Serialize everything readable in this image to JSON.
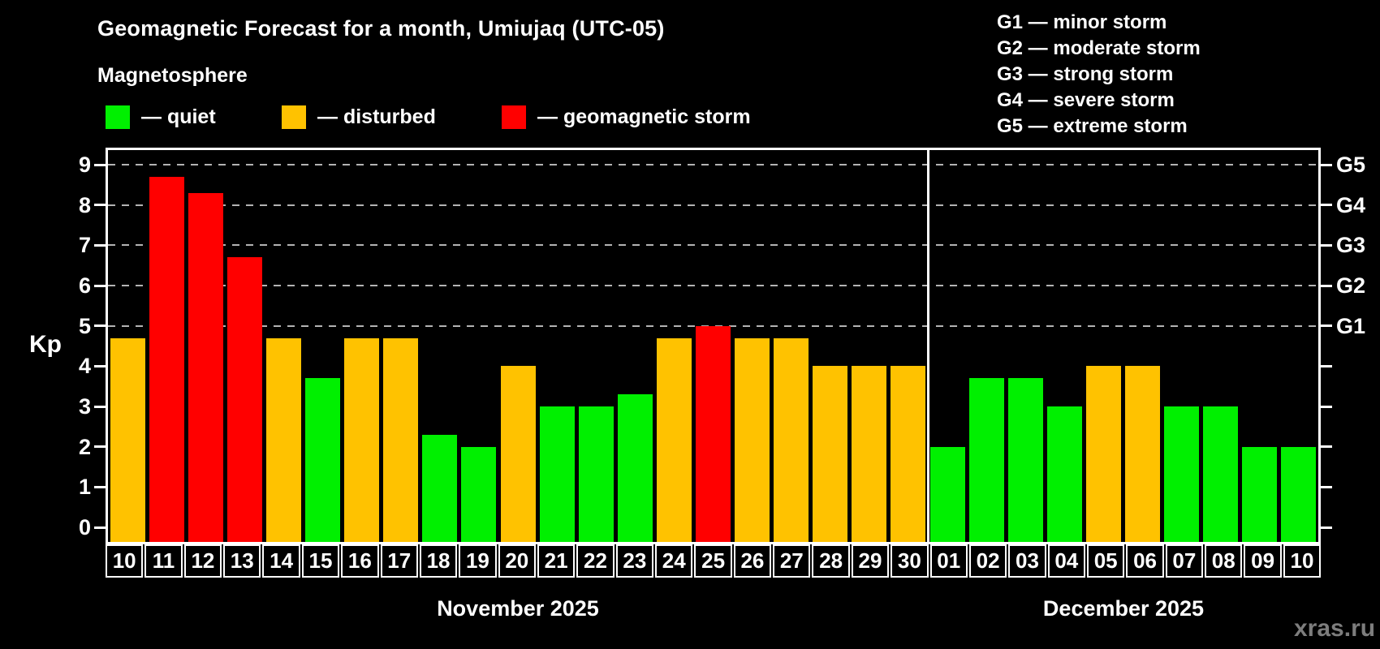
{
  "title": "Geomagnetic Forecast for a month, Umiujaq (UTC-05)",
  "subtitle": "Magnetosphere",
  "legend": {
    "quiet_label": "— quiet",
    "disturbed_label": "— disturbed",
    "storm_label": "— geomagnetic storm"
  },
  "g_legend": {
    "g1": "G1 — minor storm",
    "g2": "G2 — moderate storm",
    "g3": "G3 — strong storm",
    "g4": "G4 — severe storm",
    "g5": "G5 — extreme storm"
  },
  "months": [
    {
      "label": "November 2025"
    },
    {
      "label": "December 2025"
    }
  ],
  "watermark": "xras.ru",
  "colors": {
    "quiet": "#00f000",
    "disturbed": "#ffc200",
    "storm": "#ff0000",
    "axis": "#ffffff",
    "grid": "#b3b3b3",
    "watermark": "#7d7d7d"
  },
  "chart_data": {
    "type": "bar",
    "title": "Geomagnetic Forecast for a month, Umiujaq (UTC-05)",
    "xlabel": "",
    "ylabel": "Kp",
    "ylim": [
      0,
      9
    ],
    "grid": "dashed horizontal at Kp 5-9",
    "legend_position": "top-left",
    "y_ticks": [
      0,
      1,
      2,
      3,
      4,
      5,
      6,
      7,
      8,
      9
    ],
    "gridline_kp": [
      5,
      6,
      7,
      8,
      9
    ],
    "right_axis_labels": [
      {
        "kp": 5,
        "label": "G1"
      },
      {
        "kp": 6,
        "label": "G2"
      },
      {
        "kp": 7,
        "label": "G3"
      },
      {
        "kp": 8,
        "label": "G4"
      },
      {
        "kp": 9,
        "label": "G5"
      }
    ],
    "month_split_index": 21,
    "categories": [
      "10",
      "11",
      "12",
      "13",
      "14",
      "15",
      "16",
      "17",
      "18",
      "19",
      "20",
      "21",
      "22",
      "23",
      "24",
      "25",
      "26",
      "27",
      "28",
      "29",
      "30",
      "01",
      "02",
      "03",
      "04",
      "05",
      "06",
      "07",
      "08",
      "09",
      "10"
    ],
    "values": [
      4.7,
      8.7,
      8.3,
      6.7,
      4.7,
      3.7,
      4.7,
      4.7,
      2.3,
      2.0,
      4.0,
      3.0,
      3.0,
      3.3,
      4.7,
      5.0,
      4.7,
      4.7,
      4.0,
      4.0,
      4.0,
      2.0,
      3.7,
      3.7,
      3.0,
      4.0,
      4.0,
      3.0,
      3.0,
      2.0,
      2.0
    ],
    "statuses": [
      "disturbed",
      "storm",
      "storm",
      "storm",
      "disturbed",
      "quiet",
      "disturbed",
      "disturbed",
      "quiet",
      "quiet",
      "disturbed",
      "quiet",
      "quiet",
      "quiet",
      "disturbed",
      "storm",
      "disturbed",
      "disturbed",
      "disturbed",
      "disturbed",
      "disturbed",
      "quiet",
      "quiet",
      "quiet",
      "quiet",
      "disturbed",
      "disturbed",
      "quiet",
      "quiet",
      "quiet",
      "quiet"
    ]
  }
}
